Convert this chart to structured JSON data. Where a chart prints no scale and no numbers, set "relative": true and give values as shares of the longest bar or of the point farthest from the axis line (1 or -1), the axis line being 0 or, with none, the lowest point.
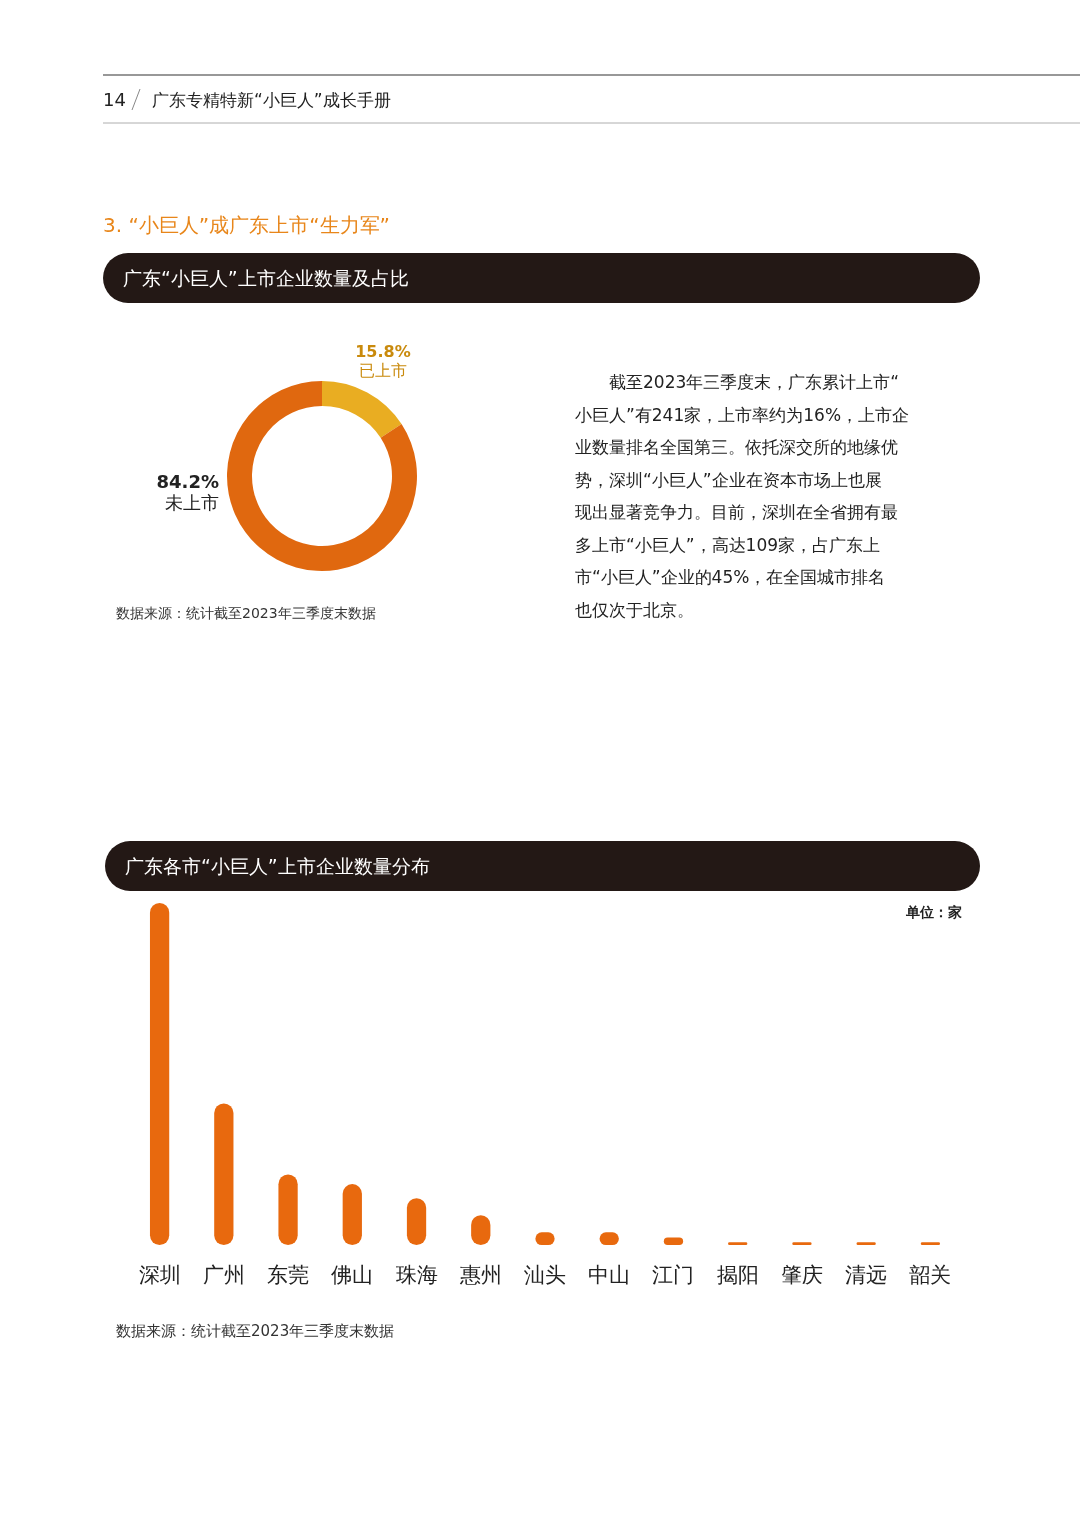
{
  "chart_data": [
    {
      "type": "other",
      "title": "3. “小巨人”成广东上市“生力军”",
      "annotations": [
        "14",
        "广东专精特新“小巨人”成长手册"
      ]
    },
    {
      "type": "donut",
      "title": "广东“小巨人”上市企业数量及占比",
      "categories": [
        "已上市",
        "未上市"
      ],
      "values": [
        15.8,
        84.2
      ],
      "colors": [
        "#e9ad22",
        "#e0680f"
      ],
      "value_labels": [
        "15.8%",
        "84.2%"
      ],
      "annotations": [
        "截至2023年三季度末，广东累计上市“小巨人”有241家，上市率约为16%，上市企业数量排名全国第三。依托深交所的地缘优势，深圳“小巨人”企业在资本市场上也展现出显著竞争力。目前，深圳在全省拥有最多上市“小巨人”，高达109家，占广东上市“小巨人”企业的45%，在全国城市排名也仅次于北京。",
        "数据来源：统计截至2023年三季度末数据"
      ]
    },
    {
      "type": "bar",
      "title": "广东各市“小巨人”上市企业数量分布",
      "categories": [
        "深圳",
        "广州",
        "东莞",
        "佛山",
        "珠海",
        "惠州",
        "汕头",
        "中山",
        "江门",
        "揭阳",
        "肇庆",
        "清远",
        "韶关"
      ],
      "values": [
        1,
        0.414,
        0.206,
        0.178,
        0.137,
        0.087,
        0.037,
        0.037,
        0.022,
        0.008,
        0.008,
        0.008,
        0.008
      ],
      "color": "#e8690e",
      "relative": true,
      "annotations": [
        "单位：家",
        "数据来源：统计截至2023年三季度末数据"
      ]
    }
  ]
}
